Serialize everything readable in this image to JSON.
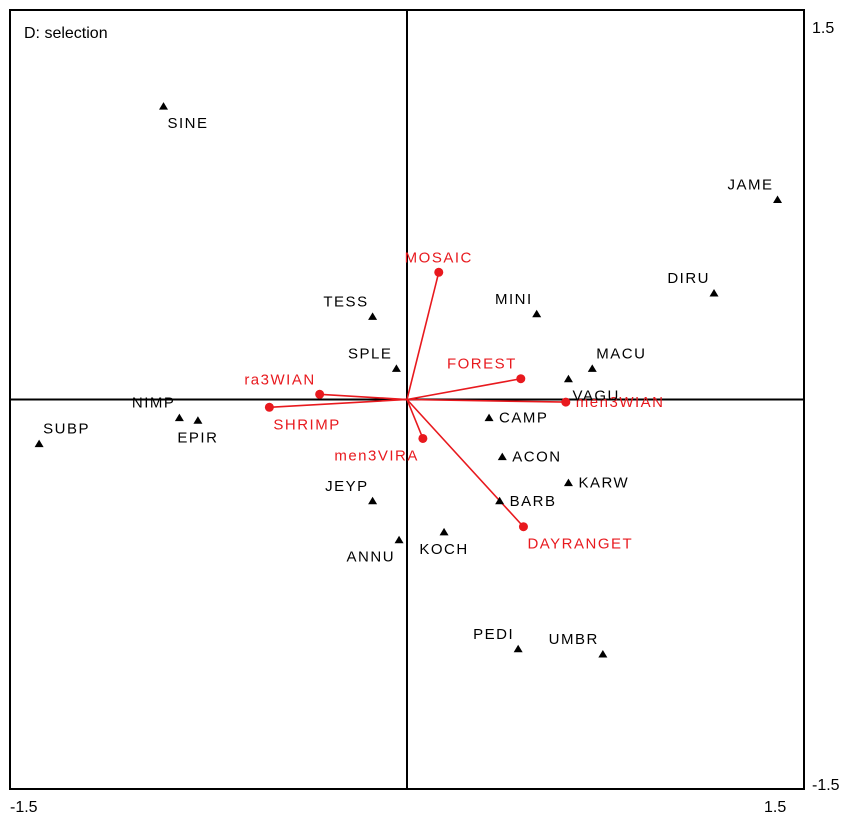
{
  "chart_data": {
    "type": "scatter",
    "title": "D: selection",
    "xlabel": "",
    "ylabel": "",
    "xlim": [
      -1.5,
      1.5
    ],
    "ylim": [
      -1.5,
      1.5
    ],
    "x_tick_labels": {
      "min": "-1.5",
      "max": "1.5"
    },
    "y_tick_labels": {
      "min": "-1.5",
      "max": "1.5"
    },
    "grid": false,
    "axes_through_origin": true,
    "species_color": "#000000",
    "environment_color": "#e8191e",
    "species": [
      {
        "name": "SINE",
        "x": -0.92,
        "y": 1.13,
        "label_anchor": "below-right"
      },
      {
        "name": "JAME",
        "x": 1.4,
        "y": 0.77,
        "label_anchor": "above-left"
      },
      {
        "name": "DIRU",
        "x": 1.16,
        "y": 0.41,
        "label_anchor": "above-left"
      },
      {
        "name": "MINI",
        "x": 0.49,
        "y": 0.33,
        "label_anchor": "above-left"
      },
      {
        "name": "TESS",
        "x": -0.13,
        "y": 0.32,
        "label_anchor": "above-left"
      },
      {
        "name": "MACU",
        "x": 0.7,
        "y": 0.12,
        "label_anchor": "above-right"
      },
      {
        "name": "SPLE",
        "x": -0.04,
        "y": 0.12,
        "label_anchor": "above-left"
      },
      {
        "name": "VAGU",
        "x": 0.61,
        "y": 0.08,
        "label_anchor": "below-right"
      },
      {
        "name": "NIMP",
        "x": -0.86,
        "y": -0.07,
        "label_anchor": "above-left"
      },
      {
        "name": "EPIR",
        "x": -0.79,
        "y": -0.08,
        "label_anchor": "below"
      },
      {
        "name": "SUBP",
        "x": -1.39,
        "y": -0.17,
        "label_anchor": "above-right"
      },
      {
        "name": "CAMP",
        "x": 0.31,
        "y": -0.07,
        "label_anchor": "right"
      },
      {
        "name": "ACON",
        "x": 0.36,
        "y": -0.22,
        "label_anchor": "right"
      },
      {
        "name": "KARW",
        "x": 0.61,
        "y": -0.32,
        "label_anchor": "right"
      },
      {
        "name": "BARB",
        "x": 0.35,
        "y": -0.39,
        "label_anchor": "right"
      },
      {
        "name": "JEYP",
        "x": -0.13,
        "y": -0.39,
        "label_anchor": "above-left"
      },
      {
        "name": "ANNU",
        "x": -0.03,
        "y": -0.54,
        "label_anchor": "below-left"
      },
      {
        "name": "KOCH",
        "x": 0.14,
        "y": -0.51,
        "label_anchor": "below"
      },
      {
        "name": "PEDI",
        "x": 0.42,
        "y": -0.96,
        "label_anchor": "above-left"
      },
      {
        "name": "UMBR",
        "x": 0.74,
        "y": -0.98,
        "label_anchor": "above-left"
      }
    ],
    "environment": [
      {
        "name": "MOSAIC",
        "x": 0.12,
        "y": 0.49,
        "label_anchor": "above"
      },
      {
        "name": "FOREST",
        "x": 0.43,
        "y": 0.08,
        "label_anchor": "above-left"
      },
      {
        "name": "men3WIAN",
        "x": 0.6,
        "y": -0.01,
        "label_anchor": "right"
      },
      {
        "name": "ra3WIAN",
        "x": -0.33,
        "y": 0.02,
        "label_anchor": "above-left"
      },
      {
        "name": "SHRIMP",
        "x": -0.52,
        "y": -0.03,
        "label_anchor": "below-right"
      },
      {
        "name": "men3VIRA",
        "x": 0.06,
        "y": -0.15,
        "label_anchor": "below-left"
      },
      {
        "name": "DAYRANGET",
        "x": 0.44,
        "y": -0.49,
        "label_anchor": "below-right"
      }
    ]
  }
}
